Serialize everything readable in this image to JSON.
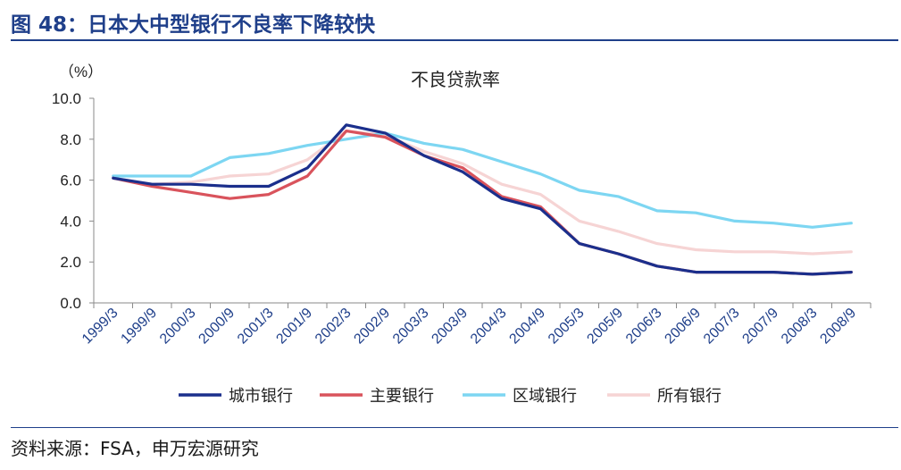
{
  "figure": {
    "title": "图 48：日本大中型银行不良率下降较快",
    "source": "资料来源：FSA，申万宏源研究"
  },
  "chart_data": {
    "type": "line",
    "title": "不良贷款率",
    "unit_label": "（%）",
    "xlabel": "",
    "ylabel": "",
    "ylim": [
      0,
      10
    ],
    "y_ticks": [
      "0.0",
      "2.0",
      "4.0",
      "6.0",
      "8.0",
      "10.0"
    ],
    "categories": [
      "1999/3",
      "1999/9",
      "2000/3",
      "2000/9",
      "2001/3",
      "2001/9",
      "2002/3",
      "2002/9",
      "2003/3",
      "2003/9",
      "2004/3",
      "2004/9",
      "2005/3",
      "2005/9",
      "2006/3",
      "2006/9",
      "2007/3",
      "2007/9",
      "2008/3",
      "2008/9"
    ],
    "grid": false,
    "legend_position": "bottom",
    "series": [
      {
        "name": "城市银行",
        "color": "#1b2f8c",
        "values": [
          6.1,
          5.8,
          5.8,
          5.7,
          5.7,
          6.6,
          8.7,
          8.3,
          7.2,
          6.4,
          5.1,
          4.6,
          2.9,
          2.4,
          1.8,
          1.5,
          1.5,
          1.5,
          1.4,
          1.5
        ]
      },
      {
        "name": "主要银行",
        "color": "#d9535c",
        "values": [
          6.1,
          5.7,
          5.4,
          5.1,
          5.3,
          6.2,
          8.4,
          8.1,
          7.2,
          6.6,
          5.2,
          4.7,
          2.9,
          2.4,
          1.8,
          1.5,
          1.5,
          1.5,
          1.4,
          1.5
        ]
      },
      {
        "name": "区域银行",
        "color": "#7dd6f2",
        "values": [
          6.2,
          6.2,
          6.2,
          7.1,
          7.3,
          7.7,
          8.0,
          8.3,
          7.8,
          7.5,
          6.9,
          6.3,
          5.5,
          5.2,
          4.5,
          4.4,
          4.0,
          3.9,
          3.7,
          3.9
        ]
      },
      {
        "name": "所有银行",
        "color": "#f6d4d4",
        "values": [
          6.1,
          5.8,
          5.9,
          6.2,
          6.3,
          7.0,
          8.4,
          8.2,
          7.4,
          6.8,
          5.8,
          5.3,
          4.0,
          3.5,
          2.9,
          2.6,
          2.5,
          2.5,
          2.4,
          2.5
        ]
      }
    ]
  }
}
